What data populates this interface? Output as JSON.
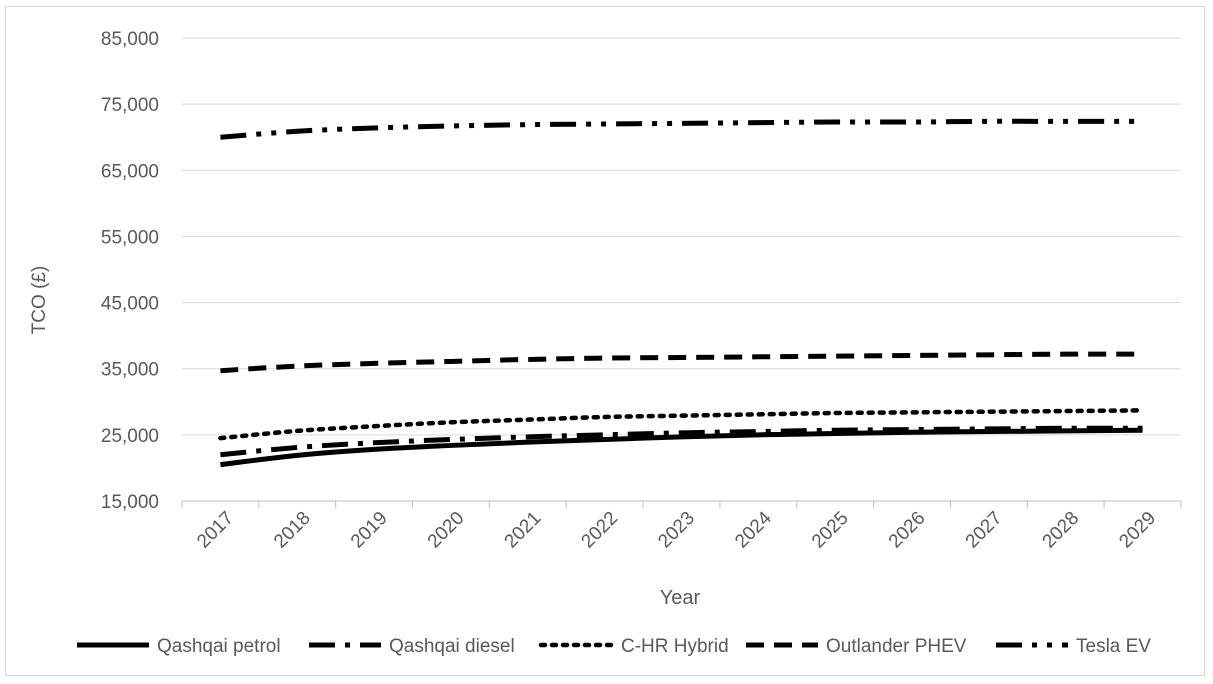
{
  "chart_data": {
    "type": "line",
    "title": "",
    "xlabel": "Year",
    "ylabel": "TCO (£)",
    "ylim": [
      15000,
      85000
    ],
    "yticks": [
      15000,
      25000,
      35000,
      45000,
      55000,
      65000,
      75000,
      85000
    ],
    "ytick_labels": [
      "15,000",
      "25,000",
      "35,000",
      "45,000",
      "55,000",
      "65,000",
      "75,000",
      "85,000"
    ],
    "categories": [
      "2017",
      "2018",
      "2019",
      "2020",
      "2021",
      "2022",
      "2023",
      "2024",
      "2025",
      "2026",
      "2027",
      "2028",
      "2029"
    ],
    "grid": "horizontal",
    "legend_position": "bottom",
    "series": [
      {
        "name": "Qashqai petrol",
        "line_style": "solid",
        "color": "#000000",
        "values": [
          20500,
          21900,
          22800,
          23400,
          23900,
          24300,
          24700,
          25000,
          25200,
          25400,
          25500,
          25600,
          25700
        ]
      },
      {
        "name": "Qashqai diesel",
        "line_style": "long-dash-dot",
        "color": "#000000",
        "values": [
          22000,
          23100,
          23800,
          24300,
          24700,
          25000,
          25300,
          25500,
          25700,
          25800,
          25900,
          26000,
          26000
        ]
      },
      {
        "name": "C-HR Hybrid",
        "line_style": "dotted",
        "color": "#000000",
        "values": [
          24500,
          25600,
          26300,
          26900,
          27300,
          27700,
          27900,
          28100,
          28300,
          28400,
          28500,
          28600,
          28700
        ]
      },
      {
        "name": "Outlander PHEV",
        "line_style": "dashed",
        "color": "#000000",
        "values": [
          34700,
          35400,
          35800,
          36100,
          36400,
          36600,
          36700,
          36800,
          36900,
          37000,
          37100,
          37200,
          37200
        ]
      },
      {
        "name": "Tesla EV",
        "line_style": "long-dash-dot-dot",
        "color": "#000000",
        "values": [
          70000,
          70900,
          71400,
          71700,
          71900,
          72000,
          72100,
          72200,
          72300,
          72300,
          72400,
          72400,
          72400
        ]
      }
    ]
  }
}
